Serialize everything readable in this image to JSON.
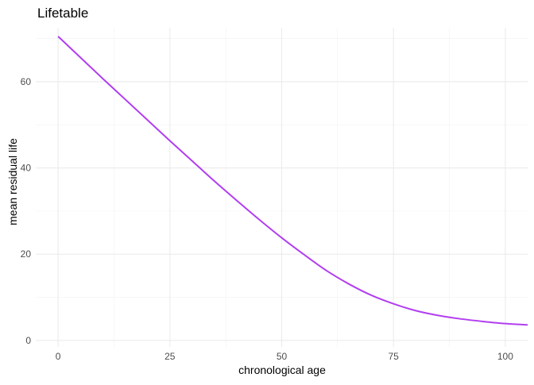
{
  "chart_data": {
    "type": "line",
    "title": "Lifetable",
    "xlabel": "chronological age",
    "ylabel": "mean residual life",
    "xlim": [
      -5,
      105
    ],
    "ylim": [
      -1.5,
      72.5
    ],
    "x_ticks": [
      0,
      25,
      50,
      75,
      100
    ],
    "y_ticks": [
      0,
      20,
      40,
      60
    ],
    "grid": true,
    "legend": "none",
    "series": [
      {
        "color": "#b23ef0",
        "x": [
          0,
          5,
          10,
          15,
          20,
          25,
          30,
          35,
          40,
          45,
          50,
          55,
          60,
          65,
          70,
          75,
          80,
          85,
          90,
          95,
          100,
          105
        ],
        "y": [
          70.5,
          65.6,
          60.7,
          55.9,
          51.1,
          46.3,
          41.6,
          36.9,
          32.4,
          28.0,
          23.8,
          19.9,
          16.2,
          13.1,
          10.5,
          8.5,
          6.9,
          5.8,
          5.0,
          4.4,
          3.9,
          3.6
        ]
      }
    ]
  }
}
